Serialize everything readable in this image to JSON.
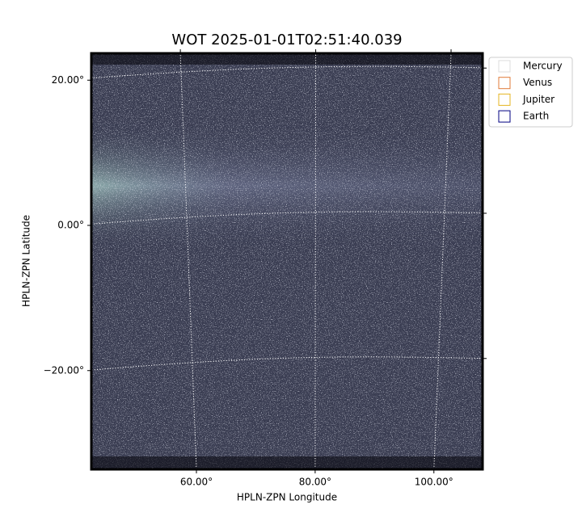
{
  "chart_data": {
    "type": "image",
    "title": "WOT 2025-01-01T02:51:40.039",
    "x_label": "HPLN-ZPN Longitude",
    "y_label": "HPLN-ZPN Latitude",
    "xlim": [
      42.3,
      108.2
    ],
    "ylim": [
      -33.6,
      23.7
    ],
    "xticks": [
      {
        "value": 60,
        "label": "60.00°"
      },
      {
        "value": 80,
        "label": "80.00°"
      },
      {
        "value": 100,
        "label": "100.00°"
      }
    ],
    "yticks": [
      {
        "value": -20,
        "label": "−20.00°"
      },
      {
        "value": 0,
        "label": "0.00°"
      },
      {
        "value": 20,
        "label": "20.00°"
      }
    ],
    "grid": true,
    "legend": "right",
    "series": [
      {
        "name": "Mercury",
        "color": "#dcdcdc"
      },
      {
        "name": "Venus",
        "color": "#e07b39"
      },
      {
        "name": "Jupiter",
        "color": "#e6b422"
      },
      {
        "name": "Earth",
        "color": "#000080"
      }
    ]
  }
}
